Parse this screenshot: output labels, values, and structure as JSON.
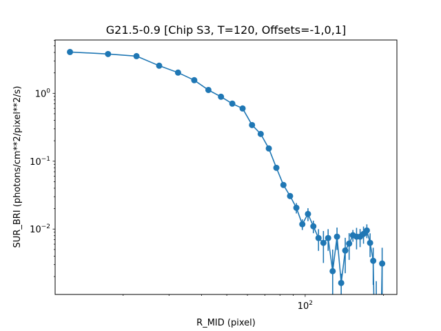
{
  "chart_data": {
    "type": "line",
    "title": "G21.5-0.9 [Chip S3, T=120, Offsets=-1,0,1]",
    "xlabel": "R_MID (pixel)",
    "ylabel": "SUR_BRI (photons/cm**2/pixel**2/s)",
    "xscale": "log",
    "yscale": "log",
    "xlim": [
      10.96,
      225
    ],
    "ylim": [
      0.00109,
      6.1
    ],
    "grid": false,
    "color": "#1f77b4",
    "x_ticks": [
      {
        "value": 100,
        "base": "10",
        "exp": "2"
      }
    ],
    "x_minor_ticks": [
      20,
      30,
      40,
      50,
      60,
      70,
      80,
      90,
      200
    ],
    "y_ticks": [
      {
        "value": 1,
        "base": "10",
        "exp": "0"
      },
      {
        "value": 0.1,
        "base": "10",
        "exp": "−1"
      },
      {
        "value": 0.01,
        "base": "10",
        "exp": "−2"
      }
    ],
    "y_minor_ticks": [
      0.002,
      0.003,
      0.004,
      0.005,
      0.006,
      0.007,
      0.008,
      0.009,
      0.02,
      0.03,
      0.04,
      0.05,
      0.06,
      0.07,
      0.08,
      0.09,
      0.2,
      0.3,
      0.4,
      0.5,
      0.6,
      0.7,
      0.8,
      0.9,
      2,
      3,
      4,
      5,
      6
    ],
    "x": [
      12.5,
      17.5,
      22.5,
      27.5,
      32.5,
      37.5,
      42.5,
      47.5,
      52.5,
      57.5,
      62.5,
      67.5,
      72.5,
      77.5,
      82.5,
      87.5,
      92.5,
      97.5,
      102.5,
      107.5,
      112.5,
      117.5,
      122.5,
      127.5,
      132.5,
      137.5,
      142.5,
      147.5,
      152.5,
      157.5,
      162.5,
      167.5,
      172.5,
      177.5,
      182.5,
      187.5,
      192.5,
      197.5
    ],
    "y": [
      4.06,
      3.79,
      3.53,
      2.55,
      2.02,
      1.56,
      1.12,
      0.89,
      0.705,
      0.598,
      0.341,
      0.252,
      0.154,
      0.08,
      0.0447,
      0.0307,
      0.0206,
      0.0118,
      0.0167,
      0.011,
      0.00738,
      0.00627,
      0.00738,
      0.0024,
      0.00773,
      0.00161,
      0.00484,
      0.00612,
      0.00811,
      0.00773,
      0.00773,
      0.00849,
      0.00955,
      0.00627,
      0.00341,
      1e-05,
      1e-05,
      0.00311
    ],
    "yerr": [
      0.02,
      0.02,
      0.02,
      0.02,
      0.02,
      0.02,
      0.02,
      0.02,
      0.01,
      0.01,
      0.01,
      0.008,
      0.006,
      0.004,
      0.003,
      0.003,
      0.0036,
      0.0021,
      0.0036,
      0.0023,
      0.0026,
      0.0031,
      0.0026,
      0.0026,
      0.0028,
      0.0006,
      0.0026,
      0.0026,
      0.0016,
      0.0027,
      0.0023,
      0.0024,
      0.0022,
      0.0024,
      0.0019,
      0.0017,
      0.0011,
      0.0022
    ]
  }
}
